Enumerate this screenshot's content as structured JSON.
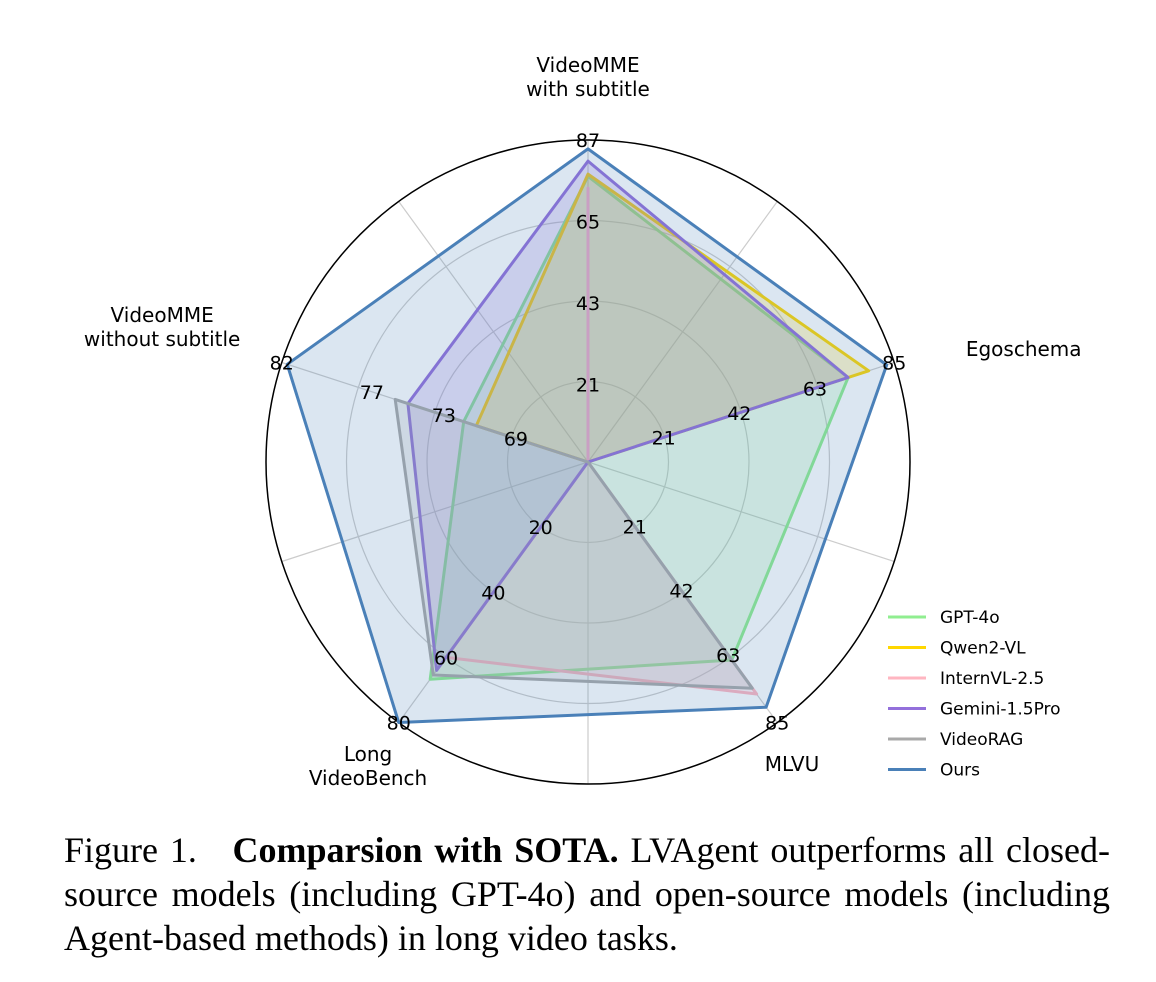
{
  "chart_data": {
    "type": "radar",
    "axes": [
      {
        "key": "vmme_sub",
        "label_lines": [
          "VideoMME",
          "with subtitle"
        ],
        "max": 87,
        "ticks": [
          21,
          43,
          65,
          87
        ]
      },
      {
        "key": "egoschema",
        "label_lines": [
          "Egoschema"
        ],
        "max": 85,
        "ticks": [
          21,
          42,
          63,
          85
        ]
      },
      {
        "key": "mlvu",
        "label_lines": [
          "MLVU"
        ],
        "max": 85,
        "ticks": [
          21,
          42,
          63,
          85
        ]
      },
      {
        "key": "longvideobench",
        "label_lines": [
          "Long",
          "VideoBench"
        ],
        "max": 80,
        "ticks": [
          20,
          40,
          60,
          80
        ]
      },
      {
        "key": "vmme_nosub",
        "label_lines": [
          "VideoMME",
          "without subtitle"
        ],
        "min": 65,
        "max": 82,
        "ticks": [
          69,
          73,
          77,
          82
        ]
      }
    ],
    "series": [
      {
        "name": "GPT-4o",
        "color": "#90ee90",
        "values": [
          77.2,
          72.2,
          64.6,
          66.7,
          71.9
        ]
      },
      {
        "name": "Qwen2-VL",
        "color": "#ffd700",
        "values": [
          77.8,
          77.9,
          0,
          0,
          71.2
        ]
      },
      {
        "name": "InternVL-2.5",
        "color": "#ffb6c1",
        "values": [
          74.0,
          0,
          75.7,
          60.0,
          0
        ]
      },
      {
        "name": "Gemini-1.5Pro",
        "color": "#9370db",
        "values": [
          81.3,
          72.2,
          0,
          64.0,
          75.0
        ]
      },
      {
        "name": "VideoRAG",
        "color": "#a9a9a9",
        "values": [
          0,
          0,
          73.8,
          65.4,
          75.7
        ]
      },
      {
        "name": "Ours",
        "color": "#4a80b8",
        "values": [
          84.6,
          82.9,
          80.0,
          80.0,
          81.7
        ]
      }
    ],
    "legend_position": "bottom-right",
    "grid": true
  },
  "caption": {
    "figure_label": "Figure 1.",
    "title": "Comparsion with SOTA.",
    "text": "LVAgent outperforms all closed-source models (including GPT-4o) and open-source models (including Agent-based methods) in long video tasks."
  }
}
